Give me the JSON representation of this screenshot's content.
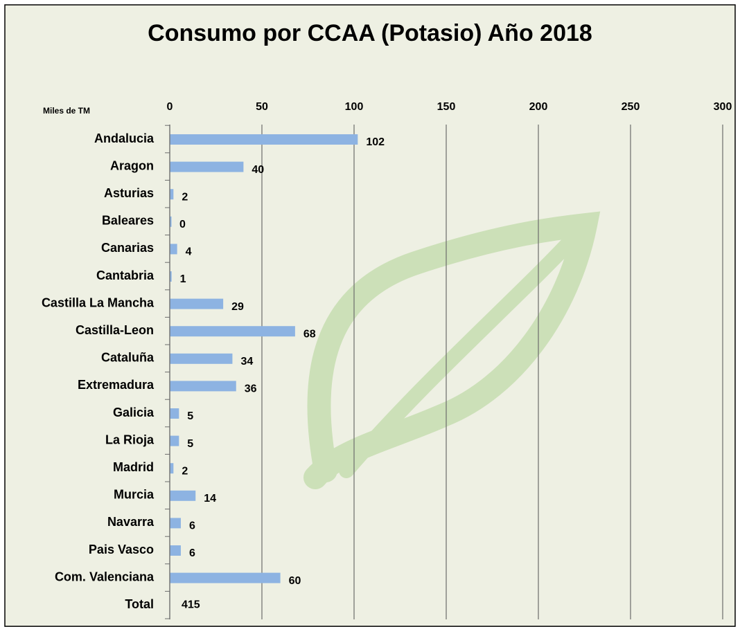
{
  "chart_data": {
    "type": "bar",
    "orientation": "horizontal",
    "title": "Consumo por CCAA (Potasio)  Año 2018",
    "unit_label": "Miles de TM",
    "categories": [
      "Andalucia",
      "Aragon",
      "Asturias",
      "Baleares",
      "Canarias",
      "Cantabria",
      "Castilla La Mancha",
      "Castilla-Leon",
      "Cataluña",
      "Extremadura",
      "Galicia",
      "La Rioja",
      "Madrid",
      "Murcia",
      "Navarra",
      "Pais Vasco",
      "Com. Valenciana"
    ],
    "values": [
      102,
      40,
      2,
      0,
      4,
      1,
      29,
      68,
      34,
      36,
      5,
      5,
      2,
      14,
      6,
      6,
      60
    ],
    "total": {
      "label": "Total",
      "value": 415
    },
    "color": "#8db3e2",
    "xlim": [
      0,
      300
    ],
    "xticks": [
      0,
      50,
      100,
      150,
      200,
      250,
      300
    ],
    "grid": true
  }
}
